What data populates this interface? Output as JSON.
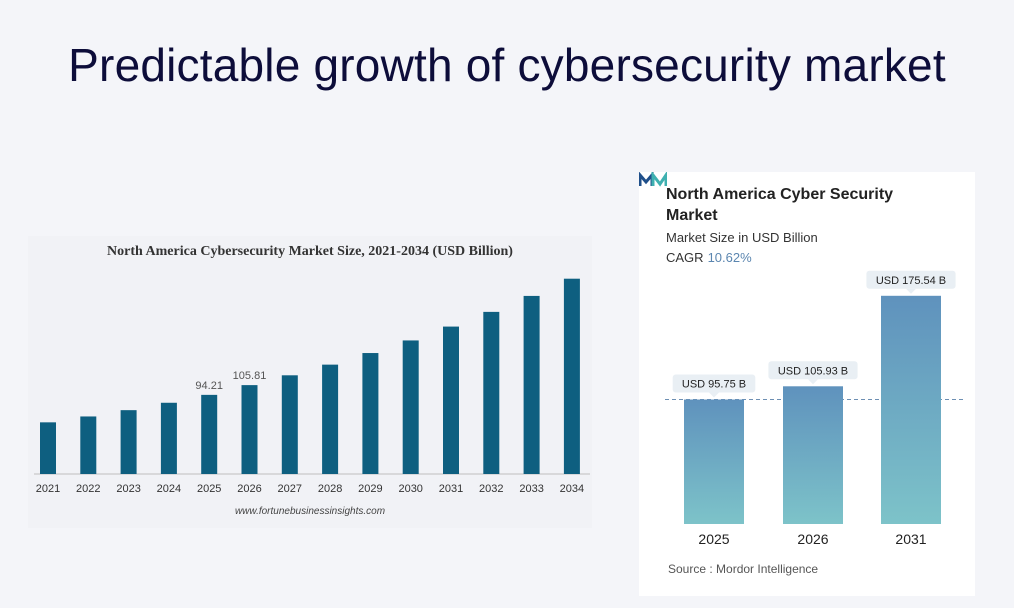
{
  "slide": {
    "title": "Predictable growth of cybersecurity market"
  },
  "chart_data": [
    {
      "type": "bar",
      "title": "North America Cybersecurity Market Size, 2021-2034 (USD Billion)",
      "categories": [
        "2021",
        "2022",
        "2023",
        "2024",
        "2025",
        "2026",
        "2027",
        "2028",
        "2029",
        "2030",
        "2031",
        "2032",
        "2033",
        "2034"
      ],
      "values": [
        61.5,
        68.5,
        76.0,
        84.8,
        94.21,
        105.81,
        117.5,
        130.2,
        144.0,
        159.0,
        175.5,
        193.0,
        212.0,
        232.5
      ],
      "data_labels": {
        "4": "94.21",
        "5": "105.81"
      },
      "ylim": [
        0,
        250
      ],
      "xlabel": "",
      "ylabel": "",
      "bar_color": "#0e5f80",
      "source": "www.fortunebusinessinsights.com"
    },
    {
      "type": "bar",
      "title": "North America Cyber Security Market",
      "subtitle": "Market Size in USD Billion",
      "cagr_label": "CAGR",
      "cagr_value": "10.62%",
      "categories": [
        "2025",
        "2026",
        "2031"
      ],
      "values": [
        95.75,
        105.93,
        175.54
      ],
      "data_labels": [
        "USD 95.75 B",
        "USD 105.93 B",
        "USD 175.54 B"
      ],
      "ylim": [
        0,
        190
      ],
      "bar_color_top": "#5f92bd",
      "bar_color_bottom": "#7dc3c9",
      "source_label": "Source :",
      "source": "Mordor Intelligence"
    }
  ]
}
